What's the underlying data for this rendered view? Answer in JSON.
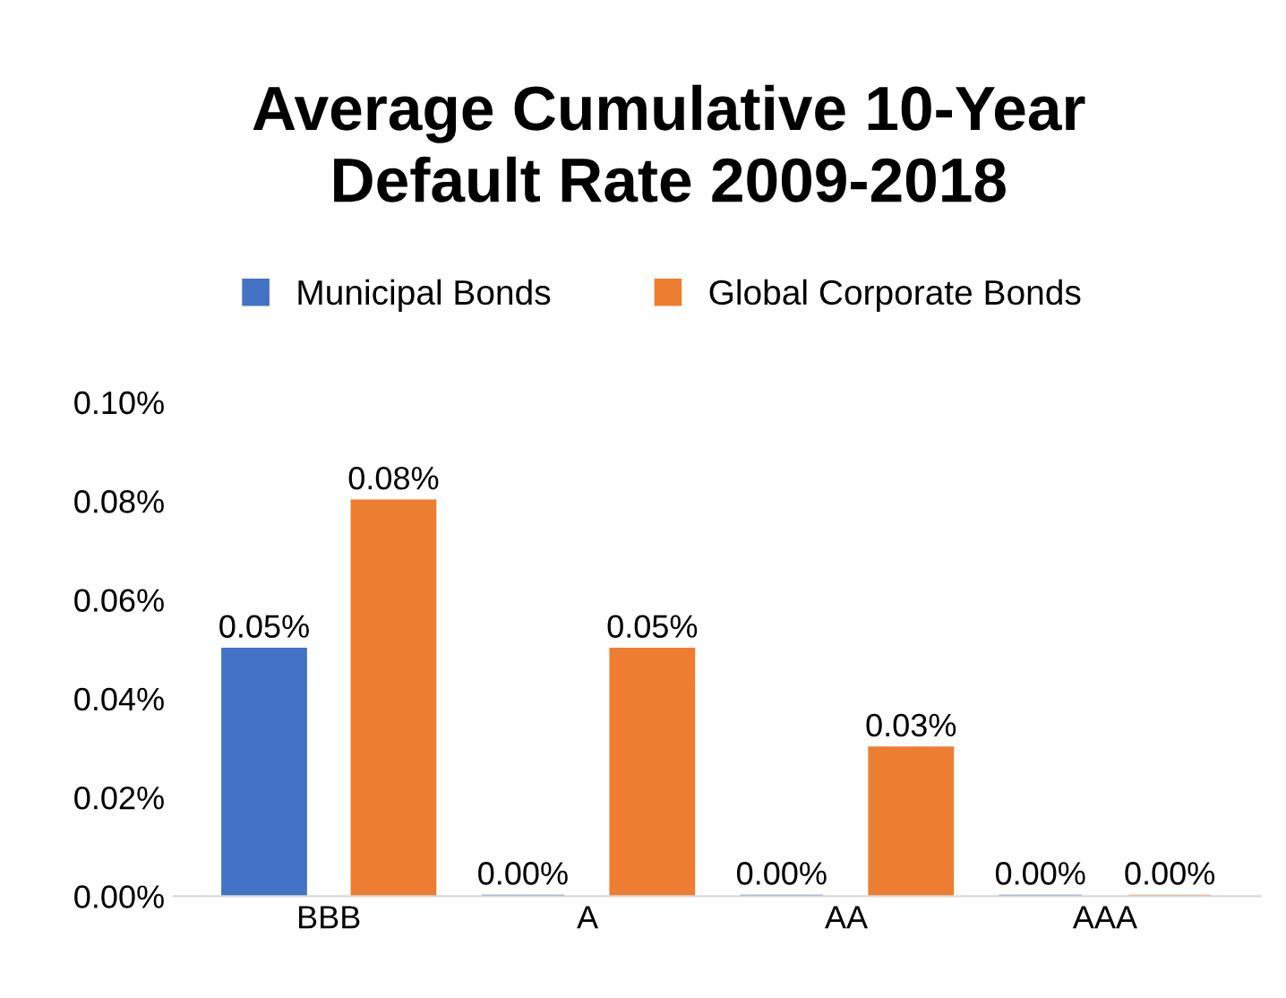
{
  "chart_data": {
    "type": "bar",
    "title": "Average Cumulative 10-Year\nDefault Rate 2009-2018",
    "categories": [
      "BBB",
      "A",
      "AA",
      "AAA"
    ],
    "series": [
      {
        "name": "Municipal Bonds",
        "color": "#4472c4",
        "values": [
          0.05,
          0,
          0,
          0
        ],
        "value_labels": [
          "0.05%",
          "0.00%",
          "0.00%",
          "0.00%"
        ]
      },
      {
        "name": "Global Corporate Bonds",
        "color": "#ed7d31",
        "values": [
          0.08,
          0.05,
          0.03,
          0
        ],
        "value_labels": [
          "0.08%",
          "0.05%",
          "0.03%",
          "0.00%"
        ]
      }
    ],
    "ylim": [
      0,
      0.1
    ],
    "yticks": [
      {
        "value": 0,
        "label": "0.00%"
      },
      {
        "value": 0.02,
        "label": "0.02%"
      },
      {
        "value": 0.04,
        "label": "0.04%"
      },
      {
        "value": 0.06,
        "label": "0.06%"
      },
      {
        "value": 0.08,
        "label": "0.08%"
      },
      {
        "value": 0.1,
        "label": "0.10%"
      }
    ],
    "grid": false,
    "legend": "top"
  }
}
